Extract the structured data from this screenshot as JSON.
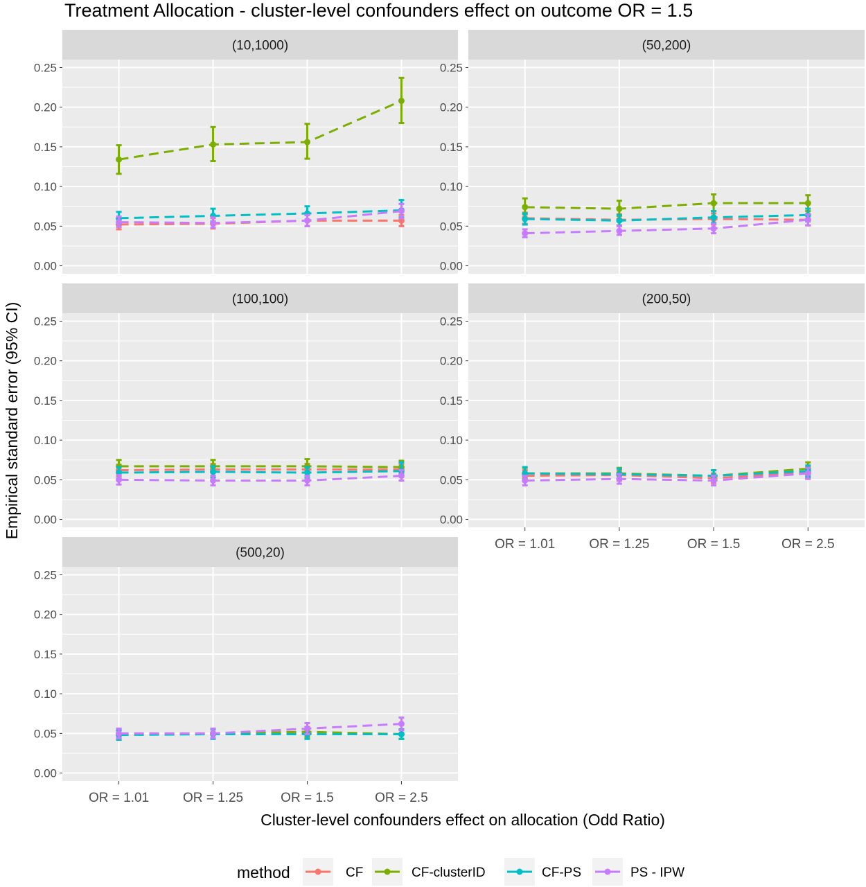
{
  "chart_data": {
    "type": "line",
    "title": "Treatment Allocation - cluster-level confounders effect on outcome OR = 1.5",
    "xlabel": "Cluster-level confounders effect on allocation (Odd Ratio)",
    "ylabel": "Empirical standard error  (95% CI)",
    "categories": [
      "OR = 1.01",
      "OR = 1.25",
      "OR = 1.5",
      "OR = 2.5"
    ],
    "ylim": [
      -0.01,
      0.26
    ],
    "yticks": [
      "0.00",
      "0.05",
      "0.10",
      "0.15",
      "0.20",
      "0.25"
    ],
    "ytick_values": [
      0,
      0.05,
      0.1,
      0.15,
      0.2,
      0.25
    ],
    "grid": true,
    "legend": {
      "title": "method",
      "position": "bottom",
      "entries": [
        {
          "name": "CF",
          "color": "#F8766D"
        },
        {
          "name": "CF-clusterID",
          "color": "#7CAE00"
        },
        {
          "name": "CF-PS",
          "color": "#00BFC4"
        },
        {
          "name": "PS - IPW",
          "color": "#C77CFF"
        }
      ]
    },
    "panels": [
      {
        "label": "(10,1000)",
        "series": [
          {
            "name": "CF",
            "values": [
              0.052,
              0.053,
              0.057,
              0.057
            ],
            "lower": [
              0.046,
              0.047,
              0.05,
              0.05
            ],
            "upper": [
              0.058,
              0.06,
              0.064,
              0.064
            ]
          },
          {
            "name": "CF-clusterID",
            "values": [
              0.134,
              0.153,
              0.156,
              0.208
            ],
            "lower": [
              0.116,
              0.132,
              0.135,
              0.18
            ],
            "upper": [
              0.152,
              0.175,
              0.179,
              0.237
            ]
          },
          {
            "name": "CF-PS",
            "values": [
              0.06,
              0.063,
              0.066,
              0.07
            ],
            "lower": [
              0.053,
              0.056,
              0.058,
              0.061
            ],
            "upper": [
              0.068,
              0.072,
              0.075,
              0.083
            ]
          },
          {
            "name": "PS - IPW",
            "values": [
              0.055,
              0.054,
              0.057,
              0.069
            ],
            "lower": [
              0.049,
              0.048,
              0.05,
              0.06
            ],
            "upper": [
              0.062,
              0.061,
              0.064,
              0.078
            ]
          }
        ]
      },
      {
        "label": "(50,200)",
        "series": [
          {
            "name": "CF",
            "values": [
              0.06,
              0.058,
              0.059,
              0.058
            ],
            "lower": [
              0.053,
              0.051,
              0.052,
              0.051
            ],
            "upper": [
              0.067,
              0.065,
              0.066,
              0.065
            ]
          },
          {
            "name": "CF-clusterID",
            "values": [
              0.074,
              0.072,
              0.079,
              0.079
            ],
            "lower": [
              0.065,
              0.063,
              0.069,
              0.069
            ],
            "upper": [
              0.085,
              0.082,
              0.09,
              0.089
            ]
          },
          {
            "name": "CF-PS",
            "values": [
              0.059,
              0.057,
              0.061,
              0.064
            ],
            "lower": [
              0.052,
              0.05,
              0.054,
              0.056
            ],
            "upper": [
              0.066,
              0.064,
              0.069,
              0.072
            ]
          },
          {
            "name": "PS - IPW",
            "values": [
              0.041,
              0.044,
              0.047,
              0.058
            ],
            "lower": [
              0.036,
              0.039,
              0.041,
              0.051
            ],
            "upper": [
              0.046,
              0.05,
              0.053,
              0.065
            ]
          }
        ]
      },
      {
        "label": "(100,100)",
        "series": [
          {
            "name": "CF",
            "values": [
              0.062,
              0.063,
              0.063,
              0.063
            ],
            "lower": [
              0.055,
              0.055,
              0.055,
              0.055
            ],
            "upper": [
              0.069,
              0.07,
              0.07,
              0.07
            ]
          },
          {
            "name": "CF-clusterID",
            "values": [
              0.067,
              0.067,
              0.067,
              0.066
            ],
            "lower": [
              0.059,
              0.059,
              0.059,
              0.058
            ],
            "upper": [
              0.075,
              0.075,
              0.076,
              0.074
            ]
          },
          {
            "name": "CF-PS",
            "values": [
              0.059,
              0.06,
              0.059,
              0.061
            ],
            "lower": [
              0.052,
              0.053,
              0.052,
              0.054
            ],
            "upper": [
              0.066,
              0.067,
              0.066,
              0.072
            ]
          },
          {
            "name": "PS - IPW",
            "values": [
              0.05,
              0.049,
              0.049,
              0.055
            ],
            "lower": [
              0.044,
              0.043,
              0.043,
              0.049
            ],
            "upper": [
              0.056,
              0.055,
              0.055,
              0.062
            ]
          }
        ]
      },
      {
        "label": "(200,50)",
        "series": [
          {
            "name": "CF",
            "values": [
              0.055,
              0.056,
              0.052,
              0.059
            ],
            "lower": [
              0.049,
              0.049,
              0.046,
              0.052
            ],
            "upper": [
              0.062,
              0.062,
              0.058,
              0.066
            ]
          },
          {
            "name": "CF-clusterID",
            "values": [
              0.058,
              0.058,
              0.055,
              0.064
            ],
            "lower": [
              0.051,
              0.051,
              0.048,
              0.056
            ],
            "upper": [
              0.065,
              0.065,
              0.062,
              0.072
            ]
          },
          {
            "name": "CF-PS",
            "values": [
              0.058,
              0.057,
              0.055,
              0.061
            ],
            "lower": [
              0.051,
              0.05,
              0.048,
              0.054
            ],
            "upper": [
              0.066,
              0.064,
              0.062,
              0.068
            ]
          },
          {
            "name": "PS - IPW",
            "values": [
              0.049,
              0.051,
              0.049,
              0.058
            ],
            "lower": [
              0.043,
              0.045,
              0.043,
              0.051
            ],
            "upper": [
              0.055,
              0.057,
              0.055,
              0.065
            ]
          }
        ]
      },
      {
        "label": "(500,20)",
        "series": [
          {
            "name": "CF",
            "values": [
              0.05,
              0.05,
              0.051,
              0.049
            ],
            "lower": [
              0.044,
              0.044,
              0.045,
              0.043
            ],
            "upper": [
              0.056,
              0.056,
              0.057,
              0.055
            ]
          },
          {
            "name": "CF-clusterID",
            "values": [
              0.049,
              0.05,
              0.052,
              0.049
            ],
            "lower": [
              0.043,
              0.044,
              0.046,
              0.043
            ],
            "upper": [
              0.055,
              0.056,
              0.058,
              0.055
            ]
          },
          {
            "name": "CF-PS",
            "values": [
              0.048,
              0.049,
              0.049,
              0.049
            ],
            "lower": [
              0.042,
              0.043,
              0.043,
              0.043
            ],
            "upper": [
              0.054,
              0.055,
              0.055,
              0.055
            ]
          },
          {
            "name": "PS - IPW",
            "values": [
              0.05,
              0.05,
              0.056,
              0.062
            ],
            "lower": [
              0.044,
              0.044,
              0.049,
              0.054
            ],
            "upper": [
              0.056,
              0.056,
              0.063,
              0.07
            ]
          }
        ]
      }
    ]
  }
}
